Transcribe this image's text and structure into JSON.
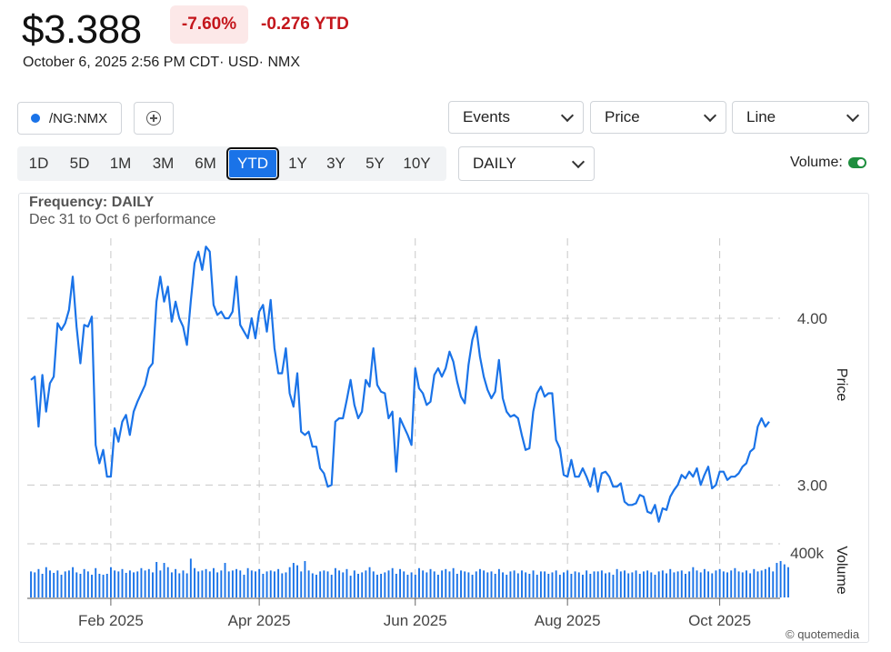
{
  "header": {
    "price": "$3.388",
    "pct_change": "-7.60%",
    "ytd_change": "-0.276 YTD",
    "datetime": "October 6, 2025 2:56 PM",
    "meta": "CDT· USD· NMX"
  },
  "toolbar": {
    "symbol": "/NG:NMX",
    "events_label": "Events",
    "price_label": "Price",
    "line_label": "Line",
    "interval_label": "DAILY",
    "volume_label": "Volume:",
    "ranges": [
      "1D",
      "5D",
      "1M",
      "3M",
      "6M",
      "YTD",
      "1Y",
      "3Y",
      "5Y",
      "10Y"
    ],
    "active_range": "YTD"
  },
  "chart_info": {
    "frequency": "Frequency: DAILY",
    "performance": "Dec 31 to Oct 6 performance"
  },
  "credit": "© quotemedia",
  "colors": {
    "line": "#1a73e8",
    "down": "#c4161c",
    "down_bg": "#fce8e8",
    "toggle_on": "#1e8e3e"
  },
  "chart_data": {
    "type": "line",
    "y_ticks": [
      {
        "value": 4.0,
        "label": "4.00"
      },
      {
        "value": 3.0,
        "label": "3.00"
      }
    ],
    "y_axis_label": "Price",
    "volume_axis_label": "Volume",
    "volume_tick": "400k",
    "x_ticks": [
      {
        "index": 21,
        "label": "Feb 2025"
      },
      {
        "index": 60,
        "label": "Apr 2025"
      },
      {
        "index": 101,
        "label": "Jun 2025"
      },
      {
        "index": 141,
        "label": "Aug 2025"
      },
      {
        "index": 181,
        "label": "Oct 2025"
      }
    ],
    "ylim": [
      2.68,
      4.48
    ],
    "price": [
      3.63,
      3.65,
      3.35,
      3.66,
      3.44,
      3.61,
      3.65,
      3.97,
      3.93,
      3.97,
      4.05,
      4.25,
      3.95,
      3.73,
      3.96,
      3.95,
      4.01,
      3.24,
      3.13,
      3.21,
      3.05,
      3.05,
      3.34,
      3.26,
      3.38,
      3.42,
      3.3,
      3.44,
      3.5,
      3.55,
      3.6,
      3.7,
      3.73,
      4.1,
      4.25,
      4.1,
      4.19,
      3.98,
      4.1,
      4.0,
      3.95,
      3.84,
      4.1,
      4.33,
      4.4,
      4.29,
      4.43,
      4.4,
      4.08,
      4.02,
      4.04,
      4.0,
      4.0,
      4.04,
      4.25,
      3.96,
      3.92,
      3.88,
      4.0,
      3.88,
      4.04,
      4.08,
      3.92,
      4.11,
      3.82,
      3.67,
      3.67,
      3.82,
      3.55,
      3.47,
      3.67,
      3.32,
      3.3,
      3.32,
      3.23,
      3.23,
      3.1,
      3.07,
      2.99,
      3.0,
      3.38,
      3.4,
      3.4,
      3.51,
      3.63,
      3.48,
      3.4,
      3.44,
      3.63,
      3.59,
      3.82,
      3.6,
      3.56,
      3.55,
      3.4,
      3.44,
      3.08,
      3.4,
      3.35,
      3.3,
      3.24,
      3.7,
      3.58,
      3.55,
      3.48,
      3.5,
      3.66,
      3.7,
      3.65,
      3.7,
      3.8,
      3.74,
      3.62,
      3.53,
      3.49,
      3.72,
      3.87,
      3.95,
      3.77,
      3.65,
      3.57,
      3.52,
      3.56,
      3.75,
      3.52,
      3.44,
      3.41,
      3.42,
      3.4,
      3.3,
      3.21,
      3.22,
      3.44,
      3.55,
      3.59,
      3.53,
      3.55,
      3.55,
      3.27,
      3.22,
      3.06,
      3.05,
      3.15,
      3.05,
      3.05,
      3.1,
      3.05,
      2.99,
      3.1,
      2.96,
      3.07,
      3.08,
      3.05,
      2.99,
      2.99,
      3.01,
      2.9,
      2.88,
      2.88,
      2.89,
      2.94,
      2.93,
      2.84,
      2.83,
      2.88,
      2.78,
      2.86,
      2.85,
      2.93,
      2.97,
      3.0,
      3.06,
      3.04,
      3.08,
      3.05,
      3.1,
      3.0,
      3.06,
      3.11,
      2.98,
      3.0,
      3.08,
      3.08,
      3.03,
      3.05,
      3.05,
      3.07,
      3.11,
      3.13,
      3.2,
      3.22,
      3.35,
      3.4,
      3.35,
      3.38
    ],
    "volume": [
      0.55,
      0.53,
      0.6,
      0.5,
      0.64,
      0.57,
      0.52,
      0.57,
      0.48,
      0.55,
      0.57,
      0.64,
      0.53,
      0.5,
      0.6,
      0.55,
      0.48,
      0.62,
      0.5,
      0.48,
      0.5,
      0.64,
      0.57,
      0.55,
      0.6,
      0.52,
      0.57,
      0.53,
      0.55,
      0.62,
      0.57,
      0.6,
      0.53,
      0.75,
      0.57,
      0.73,
      0.64,
      0.53,
      0.6,
      0.51,
      0.57,
      0.51,
      0.82,
      0.62,
      0.55,
      0.57,
      0.6,
      0.55,
      0.62,
      0.53,
      0.57,
      0.73,
      0.55,
      0.57,
      0.6,
      0.57,
      0.48,
      0.62,
      0.57,
      0.55,
      0.6,
      0.5,
      0.55,
      0.57,
      0.55,
      0.6,
      0.51,
      0.53,
      0.64,
      0.73,
      0.68,
      0.55,
      0.77,
      0.57,
      0.51,
      0.48,
      0.55,
      0.57,
      0.55,
      0.48,
      0.62,
      0.57,
      0.53,
      0.6,
      0.46,
      0.57,
      0.5,
      0.53,
      0.57,
      0.64,
      0.55,
      0.48,
      0.5,
      0.53,
      0.57,
      0.62,
      0.5,
      0.6,
      0.55,
      0.48,
      0.53,
      0.48,
      0.62,
      0.57,
      0.53,
      0.6,
      0.55,
      0.48,
      0.57,
      0.6,
      0.55,
      0.62,
      0.5,
      0.57,
      0.55,
      0.53,
      0.48,
      0.55,
      0.6,
      0.57,
      0.53,
      0.55,
      0.5,
      0.6,
      0.53,
      0.48,
      0.55,
      0.57,
      0.51,
      0.57,
      0.53,
      0.5,
      0.57,
      0.48,
      0.55,
      0.55,
      0.5,
      0.53,
      0.57,
      0.48,
      0.53,
      0.57,
      0.5,
      0.55,
      0.53,
      0.48,
      0.57,
      0.5,
      0.55,
      0.55,
      0.57,
      0.51,
      0.53,
      0.48,
      0.6,
      0.55,
      0.57,
      0.51,
      0.53,
      0.57,
      0.5,
      0.55,
      0.57,
      0.53,
      0.48,
      0.55,
      0.57,
      0.51,
      0.6,
      0.53,
      0.55,
      0.57,
      0.5,
      0.55,
      0.64,
      0.57,
      0.53,
      0.6,
      0.55,
      0.51,
      0.57,
      0.6,
      0.55,
      0.53,
      0.57,
      0.62,
      0.55,
      0.53,
      0.57,
      0.51,
      0.6,
      0.55,
      0.57,
      0.6,
      0.64,
      0.55,
      0.73,
      0.77,
      0.7,
      0.64
    ]
  }
}
